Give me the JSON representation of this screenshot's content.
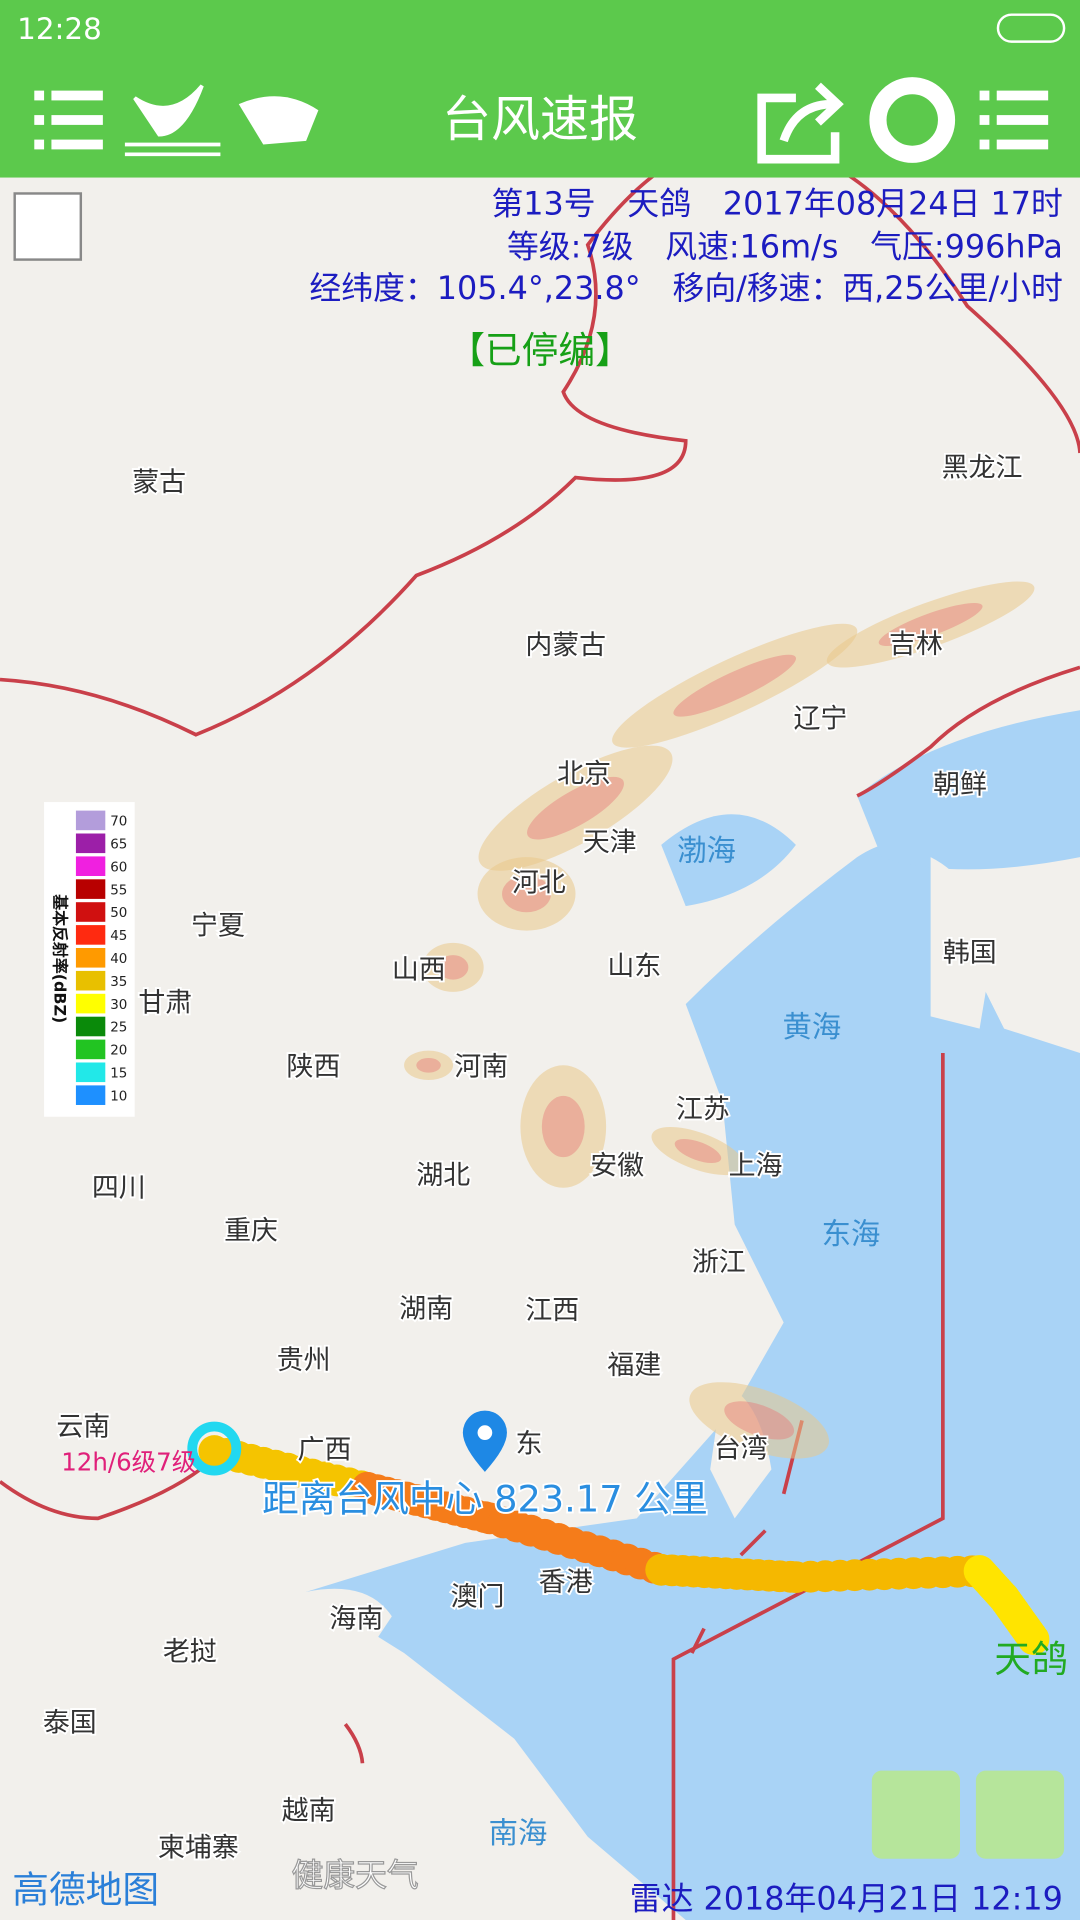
{
  "status_bar": {
    "time": "12:28"
  },
  "header": {
    "title": "台风速报"
  },
  "typhoon_info": {
    "line1": "第13号　天鸽　2017年08月24日 17时",
    "line2": "等级:7级　风速:16m/s　气压:996hPa",
    "line3": "经纬度：105.4°,23.8°　移向/移速：西,25公里/小时",
    "status": "【已停编】"
  },
  "legend": {
    "title": "基本反射率(dBZ)",
    "items": [
      {
        "value": 70,
        "color": "#b39ddb"
      },
      {
        "value": 65,
        "color": "#9c1fa8"
      },
      {
        "value": 60,
        "color": "#f020e0"
      },
      {
        "value": 55,
        "color": "#b80000"
      },
      {
        "value": 50,
        "color": "#d01010"
      },
      {
        "value": 45,
        "color": "#ff2a10"
      },
      {
        "value": 40,
        "color": "#ff9a00"
      },
      {
        "value": 35,
        "color": "#e8c000"
      },
      {
        "value": 30,
        "color": "#ffff00"
      },
      {
        "value": 25,
        "color": "#0a8a0a"
      },
      {
        "value": 20,
        "color": "#22c422"
      },
      {
        "value": 15,
        "color": "#22e8e8"
      },
      {
        "value": 10,
        "color": "#1e90ff"
      }
    ]
  },
  "map": {
    "labels": [
      "蒙古",
      "黑龙江",
      "内蒙古",
      "吉林",
      "辽宁",
      "北京",
      "朝鲜",
      "天津",
      "河北",
      "宁夏",
      "韩国",
      "山西",
      "山东",
      "甘肃",
      "陕西",
      "河南",
      "江苏",
      "安徽",
      "上海",
      "湖北",
      "四川",
      "重庆",
      "浙江",
      "湖南",
      "江西",
      "福建",
      "贵州",
      "云南",
      "广西",
      "东",
      "台湾",
      "澳门",
      "香港",
      "海南",
      "老挝",
      "泰国",
      "越南",
      "柬埔寨"
    ],
    "sea_labels": [
      "渤海",
      "黄海",
      "东海",
      "南海"
    ]
  },
  "track": {
    "forecast_label": "12h/6级7级",
    "distance": "距离台风中心 823.17 公里",
    "name": "天鸽"
  },
  "footer": {
    "map_credit": "高德地图",
    "watermark": "健康天气",
    "radar_time": "雷达 2018年04月21日 12:19"
  }
}
